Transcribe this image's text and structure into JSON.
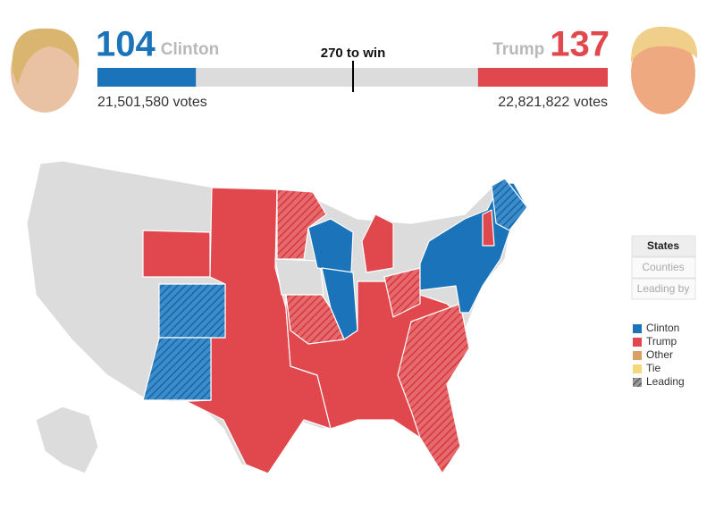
{
  "scoreboard": {
    "candidates": [
      {
        "name": "Clinton",
        "electoral_votes": 104,
        "popular_votes": "21,501,580 votes",
        "color": "#1b74b9"
      },
      {
        "name": "Trump",
        "electoral_votes": 137,
        "popular_votes": "22,821,822 votes",
        "color": "#e0484e"
      }
    ],
    "threshold": {
      "value": 270,
      "label": "270 to win"
    }
  },
  "view_tabs": [
    "States",
    "Counties",
    "Leading by"
  ],
  "legend": [
    {
      "label": "Clinton",
      "color": "#1b74b9"
    },
    {
      "label": "Trump",
      "color": "#e0484e"
    },
    {
      "label": "Other",
      "color": "#d9a064"
    },
    {
      "label": "Tie",
      "color": "#f6d77c"
    },
    {
      "label": "Leading",
      "color": "#777777"
    }
  ]
}
